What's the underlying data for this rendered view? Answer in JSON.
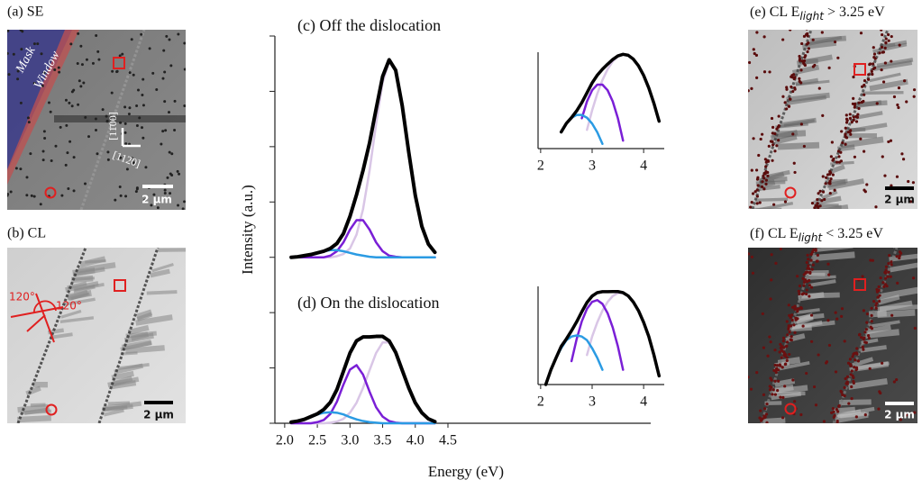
{
  "panels": {
    "a": {
      "label": "(a) SE",
      "mask": "Mask",
      "window": "Window",
      "dir1": "[11̄00]",
      "dir2": "[112̄0]",
      "scale": "2 μm"
    },
    "b": {
      "label": "(b) CL",
      "angle1": "120°",
      "angle2": "120°",
      "scale": "2 μm"
    },
    "e": {
      "label_start": "(e) CL E",
      "label_sub": "light",
      "label_end": " > 3.25 eV",
      "scale": "2 μm"
    },
    "f": {
      "label_start": "(f) CL E",
      "label_sub": "light",
      "label_end": " < 3.25 eV",
      "scale": "2 μm"
    }
  },
  "chart_data": [
    {
      "type": "line",
      "x_label": "Energy (eV)",
      "y_label": "Intensity (a.u.)",
      "annotations": [
        "(c) Off the dislocation",
        "(d) On the dislocation"
      ],
      "xlim": [
        1.85,
        4.5
      ],
      "ylim": [
        0,
        7
      ],
      "xticks": [
        {
          "value": 2,
          "label": "2.0"
        },
        2.5,
        {
          "value": 3,
          "label": "3.0"
        },
        3.5,
        {
          "value": 4,
          "label": "4.0"
        },
        4.5
      ],
      "yticks": [
        0,
        1,
        2,
        3,
        4,
        5,
        6,
        7
      ],
      "x": [
        2.1,
        2.2,
        2.3,
        2.4,
        2.5,
        2.6,
        2.7,
        2.8,
        2.9,
        3.0,
        3.1,
        3.2,
        3.3,
        3.4,
        3.5,
        3.6,
        3.7,
        3.8,
        3.9,
        4.0,
        4.1,
        4.2,
        4.3
      ],
      "series": [
        {
          "color": "#d9c6e6",
          "values": [
            3,
            3,
            3,
            3,
            3,
            3,
            3,
            3.02,
            3.06,
            3.16,
            3.41,
            3.87,
            4.57,
            5.41,
            6.16,
            6.54,
            6.37,
            5.74,
            4.9,
            4.12,
            3.56,
            3.24,
            3.09
          ]
        },
        {
          "color": "#7a1fd6",
          "values": [
            3,
            3,
            3,
            3,
            3,
            3,
            3.03,
            3.11,
            3.27,
            3.5,
            3.67,
            3.67,
            3.5,
            3.27,
            3.11,
            3.03,
            3.01,
            3,
            3,
            3,
            3,
            3,
            3
          ]
        },
        {
          "color": "#2b9be3",
          "values": [
            3,
            3.01,
            3.03,
            3.05,
            3.08,
            3.11,
            3.13,
            3.13,
            3.11,
            3.08,
            3.05,
            3.03,
            3.01,
            3,
            3,
            3,
            3,
            3,
            3,
            3,
            3,
            3,
            3
          ]
        },
        {
          "color": "#000000",
          "values": [
            3,
            3.01,
            3.03,
            3.05,
            3.08,
            3.11,
            3.16,
            3.25,
            3.43,
            3.74,
            4.13,
            4.57,
            5.07,
            5.68,
            6.27,
            6.57,
            6.38,
            5.74,
            4.9,
            4.12,
            3.56,
            3.24,
            3.09
          ]
        },
        {
          "color": "#d9c6e6",
          "values": [
            0,
            0,
            0,
            0,
            0,
            0,
            0.01,
            0.03,
            0.08,
            0.19,
            0.37,
            0.64,
            0.96,
            1.27,
            1.46,
            1.46,
            1.27,
            0.96,
            0.64,
            0.37,
            0.19,
            0.08,
            0.03
          ]
        },
        {
          "color": "#7a1fd6",
          "values": [
            0,
            0,
            0,
            0,
            0.02,
            0.06,
            0.17,
            0.39,
            0.7,
            0.97,
            1.05,
            0.88,
            0.57,
            0.29,
            0.12,
            0.04,
            0.01,
            0,
            0,
            0,
            0,
            0,
            0
          ]
        },
        {
          "color": "#2b9be3",
          "values": [
            0.02,
            0.04,
            0.07,
            0.11,
            0.16,
            0.19,
            0.2,
            0.19,
            0.16,
            0.11,
            0.07,
            0.04,
            0.02,
            0.01,
            0,
            0,
            0,
            0,
            0,
            0,
            0,
            0,
            0
          ]
        },
        {
          "color": "#000000",
          "values": [
            0.02,
            0.04,
            0.07,
            0.12,
            0.17,
            0.25,
            0.38,
            0.61,
            0.94,
            1.27,
            1.49,
            1.56,
            1.56,
            1.57,
            1.57,
            1.49,
            1.28,
            0.96,
            0.64,
            0.37,
            0.19,
            0.08,
            0.03
          ]
        }
      ]
    },
    {
      "type": "line",
      "log_y": true,
      "xlim": [
        1.95,
        4.4
      ],
      "ylim": [
        0.02,
        4
      ],
      "xticks": [
        2,
        3,
        4
      ],
      "x": [
        2.1,
        2.2,
        2.3,
        2.4,
        2.5,
        2.6,
        2.7,
        2.8,
        2.9,
        3.0,
        3.1,
        3.2,
        3.3,
        3.4,
        3.5,
        3.6,
        3.7,
        3.8,
        3.9,
        4.0,
        4.1,
        4.2,
        4.3
      ],
      "series": [
        {
          "color": "#d9c6e6",
          "values": [
            null,
            null,
            null,
            null,
            null,
            null,
            null,
            null,
            0.056,
            0.164,
            0.409,
            0.866,
            1.565,
            2.41,
            3.16,
            3.54,
            3.37,
            2.74,
            1.9,
            1.12,
            0.56,
            0.24,
            0.09
          ]
        },
        {
          "color": "#7a1fd6",
          "values": [
            null,
            null,
            null,
            null,
            null,
            null,
            null,
            0.106,
            0.267,
            0.495,
            0.673,
            0.673,
            0.495,
            0.267,
            0.106,
            0.031,
            null,
            null,
            null,
            null,
            null,
            null,
            null
          ]
        },
        {
          "color": "#2b9be3",
          "values": [
            null,
            null,
            null,
            0.049,
            0.079,
            0.109,
            0.127,
            0.127,
            0.109,
            0.079,
            0.049,
            0.026,
            null,
            null,
            null,
            null,
            null,
            null,
            null,
            null,
            null,
            null,
            null
          ]
        },
        {
          "color": "#000000",
          "values": [
            null,
            null,
            null,
            0.05,
            0.08,
            0.11,
            0.16,
            0.25,
            0.43,
            0.74,
            1.13,
            1.57,
            2.07,
            2.68,
            3.27,
            3.57,
            3.38,
            2.74,
            1.9,
            1.12,
            0.56,
            0.24,
            0.09
          ]
        }
      ]
    },
    {
      "type": "line",
      "log_y": true,
      "xlim": [
        1.95,
        4.4
      ],
      "ylim": [
        0.02,
        2
      ],
      "xticks": [
        2,
        3,
        4
      ],
      "x": [
        2.1,
        2.2,
        2.3,
        2.4,
        2.5,
        2.6,
        2.7,
        2.8,
        2.9,
        3.0,
        3.1,
        3.2,
        3.3,
        3.4,
        3.5,
        3.6,
        3.7,
        3.8,
        3.9,
        4.0,
        4.1,
        4.2,
        4.3
      ],
      "series": [
        {
          "color": "#d9c6e6",
          "values": [
            null,
            null,
            null,
            null,
            null,
            null,
            null,
            null,
            0.08,
            0.19,
            0.37,
            0.64,
            0.96,
            1.27,
            1.46,
            1.46,
            1.27,
            0.96,
            0.64,
            0.37,
            0.19,
            0.08,
            null
          ]
        },
        {
          "color": "#7a1fd6",
          "values": [
            null,
            null,
            null,
            null,
            null,
            0.06,
            0.17,
            0.39,
            0.7,
            0.97,
            1.05,
            0.88,
            0.57,
            0.29,
            0.12,
            0.04,
            null,
            null,
            null,
            null,
            null,
            null,
            null
          ]
        },
        {
          "color": "#2b9be3",
          "values": [
            0.02,
            0.04,
            0.07,
            0.11,
            0.16,
            0.19,
            0.2,
            0.19,
            0.16,
            0.11,
            0.07,
            0.04,
            null,
            null,
            null,
            null,
            null,
            null,
            null,
            null,
            null,
            null,
            null
          ]
        },
        {
          "color": "#000000",
          "values": [
            0.02,
            0.04,
            0.07,
            0.12,
            0.17,
            0.25,
            0.38,
            0.61,
            0.94,
            1.27,
            1.49,
            1.56,
            1.56,
            1.57,
            1.57,
            1.49,
            1.28,
            0.96,
            0.64,
            0.37,
            0.19,
            0.08,
            0.03
          ]
        }
      ]
    }
  ]
}
